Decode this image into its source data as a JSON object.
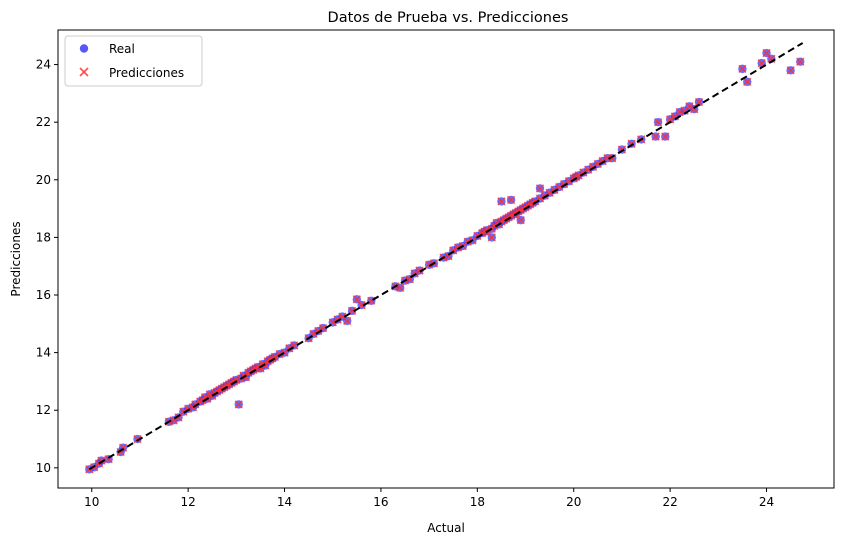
{
  "chart_data": {
    "type": "scatter",
    "title": "Datos de Prueba vs. Predicciones",
    "xlabel": "Actual",
    "ylabel": "Predicciones",
    "xlim": [
      9.3,
      25.4
    ],
    "ylim": [
      9.3,
      25.2
    ],
    "xticks": [
      10,
      12,
      14,
      16,
      18,
      20,
      22,
      24
    ],
    "yticks": [
      10,
      12,
      14,
      16,
      18,
      20,
      22,
      24
    ],
    "grid": false,
    "legend_position": "top-left",
    "reference_line": {
      "style": "dashed",
      "color": "#000000",
      "from": [
        9.95,
        9.95
      ],
      "to": [
        24.75,
        24.75
      ]
    },
    "series": [
      {
        "name": "Real",
        "marker": "circle",
        "color": "#3a3aff"
      },
      {
        "name": "Predicciones",
        "marker": "x",
        "color": "#ff3030"
      }
    ],
    "points": [
      [
        9.95,
        9.95
      ],
      [
        10.05,
        10.02
      ],
      [
        10.15,
        10.15
      ],
      [
        10.2,
        10.25
      ],
      [
        10.35,
        10.3
      ],
      [
        10.6,
        10.55
      ],
      [
        10.65,
        10.7
      ],
      [
        10.95,
        11.0
      ],
      [
        11.6,
        11.6
      ],
      [
        11.7,
        11.65
      ],
      [
        11.8,
        11.75
      ],
      [
        11.9,
        11.95
      ],
      [
        12.0,
        12.05
      ],
      [
        12.1,
        12.1
      ],
      [
        12.15,
        12.2
      ],
      [
        12.25,
        12.3
      ],
      [
        12.3,
        12.35
      ],
      [
        12.35,
        12.45
      ],
      [
        12.4,
        12.4
      ],
      [
        12.45,
        12.55
      ],
      [
        12.5,
        12.5
      ],
      [
        12.55,
        12.6
      ],
      [
        12.6,
        12.65
      ],
      [
        12.65,
        12.7
      ],
      [
        12.7,
        12.75
      ],
      [
        12.75,
        12.8
      ],
      [
        12.8,
        12.85
      ],
      [
        12.85,
        12.9
      ],
      [
        12.9,
        12.95
      ],
      [
        12.95,
        13.0
      ],
      [
        13.0,
        13.05
      ],
      [
        13.05,
        12.2
      ],
      [
        13.1,
        13.1
      ],
      [
        13.15,
        13.2
      ],
      [
        13.2,
        13.15
      ],
      [
        13.25,
        13.3
      ],
      [
        13.3,
        13.35
      ],
      [
        13.35,
        13.4
      ],
      [
        13.4,
        13.45
      ],
      [
        13.45,
        13.5
      ],
      [
        13.5,
        13.45
      ],
      [
        13.55,
        13.6
      ],
      [
        13.6,
        13.55
      ],
      [
        13.65,
        13.7
      ],
      [
        13.7,
        13.75
      ],
      [
        13.75,
        13.8
      ],
      [
        13.8,
        13.85
      ],
      [
        13.9,
        13.95
      ],
      [
        14.0,
        14.0
      ],
      [
        14.1,
        14.15
      ],
      [
        14.2,
        14.25
      ],
      [
        14.5,
        14.5
      ],
      [
        14.6,
        14.65
      ],
      [
        14.7,
        14.75
      ],
      [
        14.8,
        14.85
      ],
      [
        15.0,
        15.05
      ],
      [
        15.1,
        15.15
      ],
      [
        15.2,
        15.25
      ],
      [
        15.3,
        15.1
      ],
      [
        15.4,
        15.45
      ],
      [
        15.5,
        15.85
      ],
      [
        15.6,
        15.65
      ],
      [
        15.8,
        15.8
      ],
      [
        16.3,
        16.3
      ],
      [
        16.4,
        16.25
      ],
      [
        16.5,
        16.5
      ],
      [
        16.6,
        16.55
      ],
      [
        16.7,
        16.75
      ],
      [
        16.8,
        16.85
      ],
      [
        17.0,
        17.05
      ],
      [
        17.1,
        17.1
      ],
      [
        17.3,
        17.3
      ],
      [
        17.4,
        17.35
      ],
      [
        17.5,
        17.55
      ],
      [
        17.6,
        17.65
      ],
      [
        17.7,
        17.7
      ],
      [
        17.8,
        17.85
      ],
      [
        17.9,
        17.9
      ],
      [
        18.0,
        18.05
      ],
      [
        18.1,
        18.15
      ],
      [
        18.15,
        18.2
      ],
      [
        18.2,
        18.25
      ],
      [
        18.3,
        18.3
      ],
      [
        18.35,
        18.4
      ],
      [
        18.4,
        18.5
      ],
      [
        18.45,
        18.45
      ],
      [
        18.5,
        18.55
      ],
      [
        18.55,
        18.6
      ],
      [
        18.6,
        18.65
      ],
      [
        18.65,
        18.7
      ],
      [
        18.7,
        18.75
      ],
      [
        18.75,
        18.8
      ],
      [
        18.8,
        18.85
      ],
      [
        18.85,
        18.9
      ],
      [
        18.9,
        18.95
      ],
      [
        18.95,
        19.0
      ],
      [
        19.0,
        19.05
      ],
      [
        19.05,
        19.1
      ],
      [
        19.1,
        19.15
      ],
      [
        19.15,
        19.2
      ],
      [
        19.2,
        19.25
      ],
      [
        19.3,
        19.35
      ],
      [
        19.4,
        19.45
      ],
      [
        19.5,
        19.55
      ],
      [
        18.5,
        19.25
      ],
      [
        18.7,
        19.3
      ],
      [
        18.3,
        18.0
      ],
      [
        18.9,
        18.6
      ],
      [
        19.3,
        19.7
      ],
      [
        19.6,
        19.65
      ],
      [
        19.7,
        19.75
      ],
      [
        19.8,
        19.85
      ],
      [
        19.9,
        19.95
      ],
      [
        20.0,
        20.05
      ],
      [
        20.05,
        20.1
      ],
      [
        20.1,
        20.15
      ],
      [
        20.2,
        20.25
      ],
      [
        20.3,
        20.35
      ],
      [
        20.4,
        20.45
      ],
      [
        20.5,
        20.55
      ],
      [
        20.6,
        20.65
      ],
      [
        20.7,
        20.75
      ],
      [
        20.8,
        20.75
      ],
      [
        21.0,
        21.05
      ],
      [
        21.2,
        21.25
      ],
      [
        21.4,
        21.4
      ],
      [
        21.7,
        21.5
      ],
      [
        21.75,
        22.0
      ],
      [
        21.9,
        21.5
      ],
      [
        22.0,
        22.1
      ],
      [
        22.1,
        22.2
      ],
      [
        22.2,
        22.35
      ],
      [
        22.3,
        22.4
      ],
      [
        22.4,
        22.55
      ],
      [
        22.5,
        22.45
      ],
      [
        22.6,
        22.7
      ],
      [
        23.5,
        23.85
      ],
      [
        23.6,
        23.4
      ],
      [
        23.9,
        24.05
      ],
      [
        24.0,
        24.4
      ],
      [
        24.1,
        24.2
      ],
      [
        24.5,
        23.8
      ],
      [
        24.7,
        24.1
      ]
    ]
  }
}
